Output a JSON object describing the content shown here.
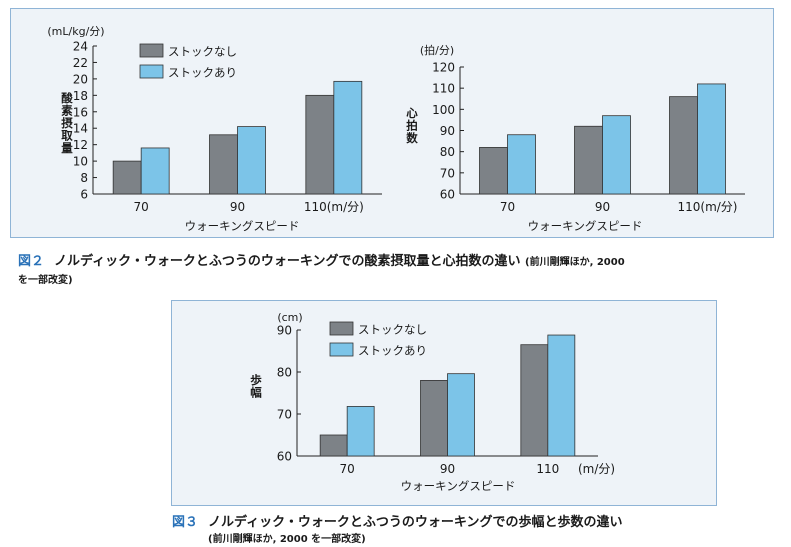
{
  "colors": {
    "series1": "#7d8287",
    "series2": "#7cc4e8",
    "figlabel": "#2a72b8",
    "panel_bg": "#eef3f8",
    "panel_border": "#8fb4d6"
  },
  "fig2": {
    "label": "図２",
    "caption": "ノルディック・ウォークとふつうのウォーキングでの酸素摂取量と心拍数の違い",
    "source": "(前川剛輝ほか, 2000",
    "source2": "を一部改変)"
  },
  "fig3": {
    "label": "図３",
    "caption": "ノルディック・ウォークとふつうのウォーキングでの歩幅と歩数の違い",
    "source": "(前川剛輝ほか, 2000 を一部改変)"
  },
  "chart_data": [
    {
      "type": "bar",
      "unit": "(mL/kg/分)",
      "ylabel": "酸素摂取量",
      "xlabel": "ウォーキングスピード",
      "categories": [
        "70",
        "90",
        "110(m/分)"
      ],
      "ylim": [
        6,
        24
      ],
      "yticks": [
        "6",
        "8",
        "10",
        "12",
        "14",
        "16",
        "18",
        "20",
        "22",
        "24"
      ],
      "legend_position": "top-left",
      "series": [
        {
          "name": "ストックなし",
          "values": [
            10.0,
            13.2,
            18.0
          ]
        },
        {
          "name": "ストックあり",
          "values": [
            11.6,
            14.2,
            19.7
          ]
        }
      ]
    },
    {
      "type": "bar",
      "unit": "(拍/分)",
      "ylabel": "心拍数",
      "xlabel": "ウォーキングスピード",
      "categories": [
        "70",
        "90",
        "110(m/分)"
      ],
      "ylim": [
        60,
        120
      ],
      "yticks": [
        "60",
        "70",
        "80",
        "90",
        "100",
        "110",
        "120"
      ],
      "series": [
        {
          "name": "ストックなし",
          "values": [
            82,
            92,
            106
          ]
        },
        {
          "name": "ストックあり",
          "values": [
            88,
            97,
            112
          ]
        }
      ]
    },
    {
      "type": "bar",
      "unit": "(cm)",
      "ylabel": "歩幅",
      "xlabel": "ウォーキングスピード",
      "categories": [
        "70",
        "90",
        "110"
      ],
      "xunit": "(m/分)",
      "ylim": [
        60,
        90
      ],
      "yticks": [
        "60",
        "70",
        "80",
        "90"
      ],
      "legend_position": "top-left",
      "series": [
        {
          "name": "ストックなし",
          "values": [
            65,
            78,
            86.5
          ]
        },
        {
          "name": "ストックあり",
          "values": [
            71.8,
            79.6,
            88.8
          ]
        }
      ]
    }
  ]
}
